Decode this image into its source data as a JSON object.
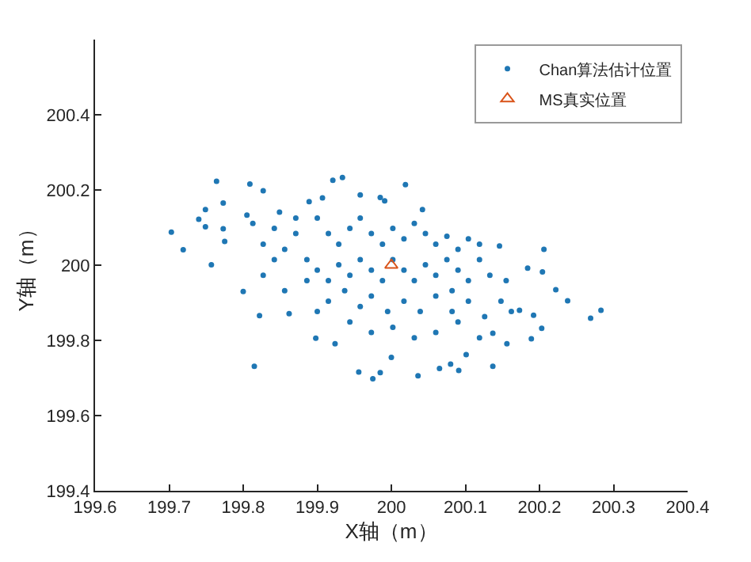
{
  "chart_data": {
    "type": "scatter",
    "xlabel": "X轴（m）",
    "ylabel": "Y轴（m）",
    "xlim": [
      199.6,
      200.4
    ],
    "xticks": [
      199.6,
      199.7,
      199.8,
      199.9,
      200,
      200.1,
      200.2,
      200.3,
      200.4
    ],
    "ylim": [
      199.4,
      200.6
    ],
    "yticks": [
      199.4,
      199.6,
      199.8,
      200,
      200.2,
      200.4
    ],
    "legend": "top right",
    "series": [
      {
        "name": "Chan算法估计位置",
        "color": "#1f77b4",
        "marker": "circle",
        "x": [
          199.703,
          199.719,
          199.74,
          199.749,
          199.749,
          199.757,
          199.764,
          199.773,
          199.773,
          199.775,
          199.8,
          199.809,
          199.815,
          199.822,
          199.827,
          199.862,
          199.898,
          199.921,
          199.934,
          199.924,
          199.956,
          199.975,
          199.985,
          200.0,
          200.019,
          200.036,
          200.065,
          200.08,
          200.091,
          200.137,
          200.146,
          200.206,
          200.204,
          200.222,
          200.238,
          200.269,
          200.283,
          200.203,
          200.189,
          200.192,
          200.184,
          200.173,
          200.156,
          200.137,
          200.101,
          200.042,
          199.991,
          199.985,
          199.958,
          199.907,
          199.889,
          199.849,
          199.805,
          199.9,
          199.915,
          199.929,
          199.944,
          199.958,
          199.973,
          199.988,
          200.002,
          200.017,
          200.031,
          200.046,
          200.06,
          200.075,
          200.09,
          199.886,
          199.9,
          199.915,
          199.929,
          199.944,
          199.958,
          199.973,
          199.988,
          200.002,
          200.017,
          200.031,
          200.046,
          200.06,
          200.075,
          200.09,
          200.104,
          200.119,
          200.133,
          199.915,
          199.937,
          199.958,
          199.973,
          199.995,
          200.017,
          200.039,
          200.06,
          200.082,
          200.104,
          200.126,
          200.148,
          199.944,
          199.973,
          200.002,
          200.031,
          200.06,
          200.09,
          200.119,
          199.827,
          199.842,
          199.856,
          199.871,
          199.827,
          199.856,
          199.813,
          199.842,
          199.871,
          199.886,
          199.9,
          200.082,
          200.155,
          200.162,
          200.104,
          200.119
        ],
        "values": [
          200.088,
          200.041,
          200.122,
          200.148,
          200.102,
          200.001,
          200.223,
          200.165,
          200.097,
          200.063,
          199.93,
          200.216,
          199.731,
          199.866,
          200.198,
          199.871,
          199.806,
          200.226,
          200.233,
          199.791,
          199.716,
          199.698,
          199.714,
          199.755,
          200.214,
          199.706,
          199.725,
          199.737,
          199.72,
          199.731,
          200.051,
          200.042,
          199.982,
          199.935,
          199.905,
          199.859,
          199.88,
          199.832,
          199.804,
          199.867,
          199.992,
          199.88,
          199.791,
          199.819,
          199.762,
          200.148,
          200.171,
          200.18,
          200.187,
          200.179,
          200.169,
          200.141,
          200.133,
          200.125,
          200.084,
          200.056,
          200.098,
          200.125,
          200.084,
          200.056,
          200.098,
          200.07,
          200.111,
          200.084,
          200.056,
          200.077,
          200.042,
          200.015,
          199.987,
          199.959,
          200.001,
          199.973,
          200.015,
          199.987,
          199.959,
          200.015,
          199.987,
          199.959,
          200.001,
          199.973,
          200.015,
          199.987,
          199.959,
          200.015,
          199.973,
          199.904,
          199.932,
          199.89,
          199.918,
          199.877,
          199.904,
          199.877,
          199.918,
          199.877,
          199.904,
          199.863,
          199.904,
          199.849,
          199.821,
          199.835,
          199.807,
          199.821,
          199.849,
          199.807,
          200.056,
          200.015,
          200.042,
          200.084,
          199.973,
          199.932,
          200.111,
          200.098,
          200.125,
          199.959,
          199.877,
          199.932,
          199.959,
          199.877,
          200.07,
          200.056
        ]
      },
      {
        "name": "MS真实位置",
        "color": "#d95319",
        "marker": "triangle",
        "x": [
          200
        ],
        "values": [
          200
        ]
      }
    ]
  }
}
